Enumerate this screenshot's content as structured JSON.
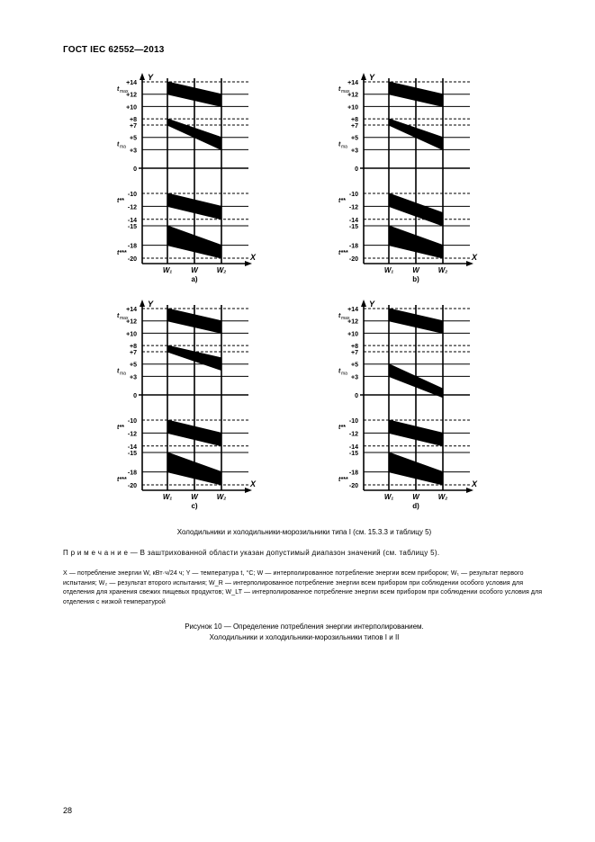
{
  "document": {
    "header": "ГОСТ IEC 62552—2013",
    "page_number": "28"
  },
  "axes": {
    "x_label": "X",
    "y_label": "Y",
    "y_ticks": [
      "+14",
      "+12",
      "+10",
      "+8",
      "+7",
      "+5",
      "+3",
      "0",
      "-10",
      "-12",
      "-14",
      "-15",
      "-18",
      "-20"
    ],
    "y_side_labels": {
      "t_max": "t_max",
      "t_ma": "t_ma",
      "t_star": "t**",
      "t_tristar": "t***"
    },
    "x_ticks": [
      "W₁",
      "W",
      "W₂"
    ]
  },
  "subplot_labels": {
    "a": "a)",
    "b": "b)",
    "c": "c)",
    "d": "d)"
  },
  "captions": {
    "line1": "Холодильники и холодильники-морозильники типа I (см. 15.3.3 и таблицу 5)",
    "note": "П р и м е ч а н и е — В заштрихованной области указан допустимый диапазон значений (см. таблицу 5).",
    "legend": "X — потребление энергии W, кВт·ч/24 ч;  Y — температура t, °C;  W — интерполированное потребление энергии всем прибором;  W₁ — результат первого испытания;  W₂ — результат второго испытания;  W_R — интерполированное потребление энергии всем прибором при соблюдении особого условия для отделения для хранения свежих пищевых продуктов;  W_LT — интерполированное потребление энергии всем прибором при соблюдении особого условия для отделения с низкой температурой",
    "figure_title_1": "Рисунок 10 — Определение потребления энергии интерполированием.",
    "figure_title_2": "Холодильники и холодильники-морозильники типов I и II"
  },
  "style": {
    "stroke": "#000000",
    "hatch": "#000000",
    "bg": "#ffffff",
    "axis_width": 1.6,
    "line_width": 1,
    "dash": "3,2"
  }
}
